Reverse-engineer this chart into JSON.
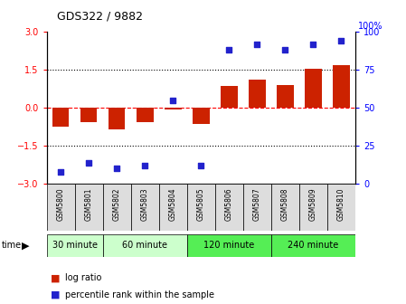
{
  "title": "GDS322 / 9882",
  "samples": [
    "GSM5800",
    "GSM5801",
    "GSM5802",
    "GSM5803",
    "GSM5804",
    "GSM5805",
    "GSM5806",
    "GSM5807",
    "GSM5808",
    "GSM5809",
    "GSM5810"
  ],
  "log_ratio": [
    -0.75,
    -0.55,
    -0.85,
    -0.55,
    -0.05,
    -0.65,
    0.85,
    1.1,
    0.9,
    1.55,
    1.7
  ],
  "percentile": [
    8,
    14,
    10,
    12,
    55,
    12,
    88,
    92,
    88,
    92,
    94
  ],
  "groups": [
    {
      "label": "30 minute",
      "start": 0,
      "end": 1,
      "color": "#ccffcc"
    },
    {
      "label": "60 minute",
      "start": 2,
      "end": 4,
      "color": "#ccffcc"
    },
    {
      "label": "120 minute",
      "start": 5,
      "end": 7,
      "color": "#55ee55"
    },
    {
      "label": "240 minute",
      "start": 8,
      "end": 10,
      "color": "#55ee55"
    }
  ],
  "bar_color": "#cc2200",
  "dot_color": "#2222cc",
  "ylim": [
    -3,
    3
  ],
  "yticks_left": [
    -3,
    -1.5,
    0,
    1.5,
    3
  ],
  "yticks_right": [
    0,
    25,
    50,
    75,
    100
  ],
  "hlines_dotted": [
    1.5,
    -1.5
  ],
  "hline_red_dashed": 0,
  "background_color": "#ffffff",
  "legend_log": "log ratio",
  "legend_pct": "percentile rank within the sample"
}
